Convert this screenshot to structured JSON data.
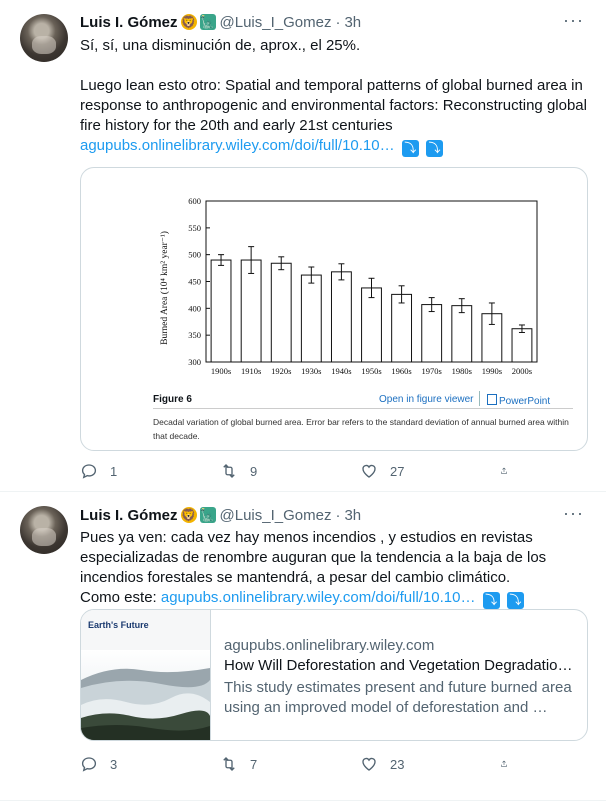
{
  "tweets": [
    {
      "name": "Luis I. Gómez",
      "emoji1": "🦁",
      "emoji2": "🗽",
      "handle": "@Luis_I_Gomez",
      "sep": "·",
      "time": "3h",
      "more": "···",
      "p1": "Sí, sí, una disminución de, aprox., el 25%.",
      "p2": "Luego lean esto otro: Spatial and temporal patterns of global burned area in response to anthropogenic and environmental factors: Reconstructing global fire history for the 20th and early 21st centuries",
      "link": "agupubs.onlinelibrary.wiley.com/doi/full/10.10…",
      "arrows": [
        "⤵",
        "⤵"
      ],
      "replies": "1",
      "retweets": "9",
      "likes": "27"
    },
    {
      "name": "Luis I. Gómez",
      "emoji1": "🦁",
      "emoji2": "🗽",
      "handle": "@Luis_I_Gomez",
      "sep": "·",
      "time": "3h",
      "more": "···",
      "text": "Pues ya ven: cada vez hay menos incendios , y estudios en revistas especializadas de renombre auguran que la tendencia a la baja de los incendios forestales se mantendrá, a pesar del cambio climático.",
      "text_prefix": "Como este: ",
      "link": "agupubs.onlinelibrary.wiley.com/doi/full/10.10…",
      "arrows": [
        "⤵",
        "⤵"
      ],
      "replies": "3",
      "retweets": "7",
      "likes": "23"
    }
  ],
  "figure": {
    "label": "Figure 6",
    "open_link": "Open in figure viewer",
    "powerpoint": "PowerPoint",
    "caption": "Decadal variation of global burned area. Error bar refers to the standard deviation of annual burned area within that decade."
  },
  "chart_data": {
    "type": "bar",
    "categories": [
      "1900s",
      "1910s",
      "1920s",
      "1930s",
      "1940s",
      "1950s",
      "1960s",
      "1970s",
      "1980s",
      "1990s",
      "2000s"
    ],
    "values": [
      490,
      490,
      484,
      462,
      468,
      438,
      426,
      407,
      405,
      390,
      362
    ],
    "errors": [
      10,
      25,
      12,
      15,
      15,
      18,
      16,
      13,
      13,
      20,
      7
    ],
    "ylabel": "Burned Area (10⁴ km² year⁻¹)",
    "ylim": [
      300,
      600
    ],
    "yticks": [
      300,
      350,
      400,
      450,
      500,
      550,
      600
    ],
    "grid": false
  },
  "link_card": {
    "logo": "Earth's Future",
    "domain": "agupubs.onlinelibrary.wiley.com",
    "title": "How Will Deforestation and Vegetation Degradation…",
    "description": "This study estimates present and future burned area using an improved model of deforestation and …"
  }
}
